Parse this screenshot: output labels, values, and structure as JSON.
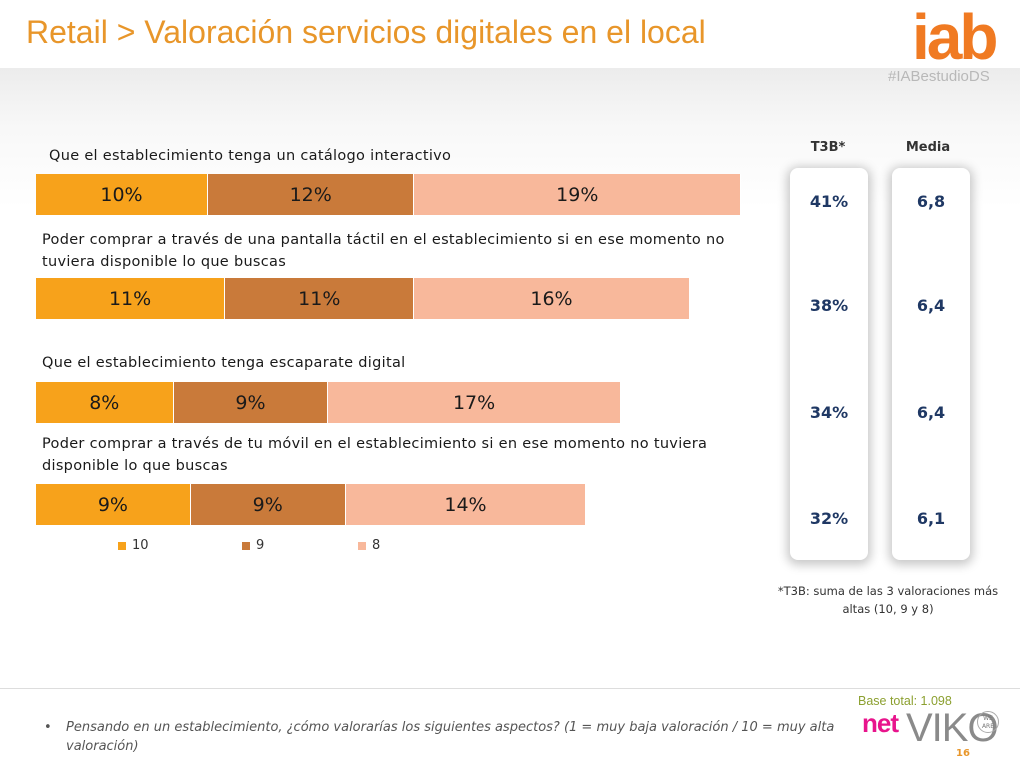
{
  "header": {
    "title": "Retail > Valoración servicios digitales en el local",
    "logo": "iab",
    "hashtag": "#IABestudioDS"
  },
  "colors": {
    "s10": "#f7a21b",
    "s9": "#c97a3a",
    "s8": "#f8b89b",
    "t3b": "#1f3864",
    "title": "#e8962a"
  },
  "chart_data": {
    "type": "bar",
    "orientation": "horizontal-stacked",
    "categories": [
      "Que el establecimiento tenga un catálogo interactivo",
      "Poder comprar a través de una pantalla táctil en el establecimiento si en ese momento no tuviera disponible lo que buscas",
      "Que el establecimiento tenga escaparate digital",
      "Poder comprar a través de tu móvil en el establecimiento si en ese momento no tuviera disponible lo que buscas"
    ],
    "series": [
      {
        "name": "10",
        "values": [
          10,
          11,
          8,
          9
        ]
      },
      {
        "name": "9",
        "values": [
          12,
          11,
          9,
          9
        ]
      },
      {
        "name": "8",
        "values": [
          19,
          16,
          17,
          14
        ]
      }
    ],
    "value_suffix": "%",
    "columns": {
      "t3b_header": "T3B*",
      "media_header": "Media",
      "t3b": [
        "41%",
        "38%",
        "34%",
        "32%"
      ],
      "media": [
        "6,8",
        "6,4",
        "6,4",
        "6,1"
      ]
    },
    "legend_position": "bottom-left"
  },
  "note": "*T3B: suma de las 3 valoraciones más altas (10, 9 y 8)",
  "footer": {
    "base": "Base total:  1.098",
    "question": "Pensando en un establecimiento, ¿cómo valorarías los siguientes aspectos? (1 = muy baja valoración / 10 = muy alta valoración)",
    "bullet": "•",
    "partner1": "net",
    "partner2": "VIKO",
    "partner2_badge": "WE ARE",
    "page": "16"
  }
}
